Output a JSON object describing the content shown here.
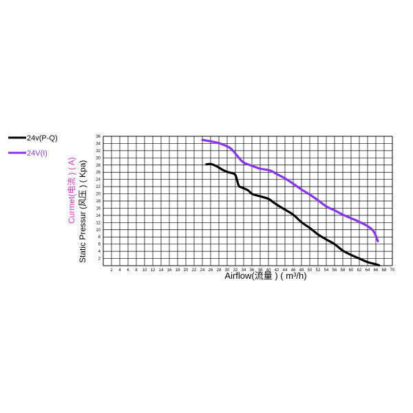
{
  "chart_data": {
    "type": "line",
    "title": "",
    "xlabel": "Airflow(流量 ) ( m³/h)",
    "ylabel_primary": "Static Pressur (风压 ) ( Kpa)",
    "ylabel_secondary": "Curmet(电流 ) ( A)",
    "xlim": [
      0,
      70
    ],
    "ylim": [
      0,
      36
    ],
    "x_ticks": [
      "2",
      "4",
      "6",
      "8",
      "10",
      "12",
      "14",
      "16",
      "18",
      "20",
      "22",
      "24",
      "26",
      "28",
      "30",
      "32",
      "34",
      "36",
      "38",
      "40",
      "42",
      "44",
      "46",
      "48",
      "50",
      "52",
      "54",
      "56",
      "58",
      "60",
      "62",
      "64",
      "66",
      "68",
      "70"
    ],
    "y_ticks": [
      "2",
      "4",
      "6",
      "8",
      "10",
      "12",
      "14",
      "16",
      "18",
      "20",
      "22",
      "24",
      "26",
      "28",
      "30",
      "32",
      "34",
      "36"
    ],
    "grid": true,
    "legend_position": "left",
    "series": [
      {
        "name": "24v(P-Q)",
        "color": "#000000",
        "x": [
          25,
          26,
          27,
          28,
          29,
          30,
          31,
          32,
          32.8,
          33.5,
          35,
          36,
          37,
          38,
          40,
          41,
          42,
          44,
          46,
          48,
          50,
          52,
          54,
          56,
          58,
          60,
          62,
          64,
          66,
          66.8
        ],
        "y": [
          28.2,
          28.3,
          27.9,
          27.3,
          26.6,
          26.1,
          25.8,
          25.2,
          22.3,
          21.8,
          21.0,
          20.0,
          19.6,
          19.3,
          18.6,
          17.8,
          17.0,
          15.6,
          14.2,
          12.1,
          10.5,
          8.7,
          7.3,
          6.0,
          4.2,
          3.0,
          2.0,
          1.0,
          0.4,
          0.1
        ]
      },
      {
        "name": "24V(I)",
        "color": "#8833ee",
        "x": [
          24,
          26,
          28,
          30,
          31,
          32,
          33,
          34,
          36,
          38,
          40,
          41,
          42,
          44,
          46,
          48,
          50,
          52,
          54,
          56,
          58,
          60,
          62,
          64,
          65.5,
          66.5
        ],
        "y": [
          35.0,
          34.6,
          34.1,
          33.2,
          32.5,
          31.2,
          29.8,
          28.7,
          27.8,
          27.0,
          26.6,
          26.2,
          25.5,
          24.3,
          22.8,
          21.2,
          19.8,
          18.2,
          16.5,
          15.4,
          14.2,
          13.2,
          12.2,
          11.0,
          9.5,
          6.8
        ]
      }
    ]
  }
}
